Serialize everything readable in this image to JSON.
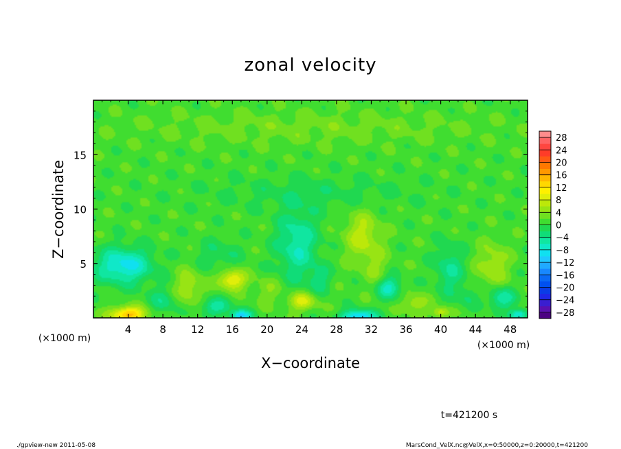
{
  "chart_data": {
    "type": "heatmap",
    "title": "zonal velocity",
    "xlabel": "X−coordinate",
    "ylabel": "Z−coordinate",
    "x_unit_label": "(×1000 m)",
    "y_unit_label": "(×1000 m)",
    "xlim": [
      0,
      50
    ],
    "ylim": [
      0,
      20
    ],
    "x_ticks": [
      4,
      8,
      12,
      16,
      20,
      24,
      28,
      32,
      36,
      40,
      44,
      48
    ],
    "x_tick_labels": [
      "4",
      "8",
      "12",
      "16",
      "20",
      "24",
      "28",
      "32",
      "36",
      "40",
      "44",
      "48"
    ],
    "y_ticks": [
      5,
      10,
      15
    ],
    "y_tick_labels": [
      "5",
      "10",
      "15"
    ],
    "colorbar": {
      "levels": [
        -30,
        -28,
        -26,
        -24,
        -22,
        -20,
        -18,
        -16,
        -14,
        -12,
        -10,
        -8,
        -6,
        -4,
        -2,
        0,
        2,
        4,
        6,
        8,
        10,
        12,
        14,
        16,
        18,
        20,
        22,
        24,
        26,
        28,
        30
      ],
      "colors": [
        "#4b0082",
        "#5a10b0",
        "#3a1ed0",
        "#1e28e6",
        "#0a3ce6",
        "#0050f0",
        "#0a6af5",
        "#1888ff",
        "#20aaff",
        "#20c8ff",
        "#10e0f0",
        "#10e8c8",
        "#10e6a0",
        "#10dc78",
        "#20d850",
        "#40dd30",
        "#70e020",
        "#98e414",
        "#bce80a",
        "#e0ee0a",
        "#fff000",
        "#ffd800",
        "#ffb800",
        "#ff9800",
        "#ff7800",
        "#ff5a14",
        "#ff3c28",
        "#ff4640",
        "#ff6464",
        "#ff8c8c"
      ],
      "tick_values": [
        -28,
        -24,
        -20,
        -16,
        -12,
        -8,
        -4,
        0,
        4,
        8,
        12,
        16,
        20,
        24,
        28
      ],
      "tick_labels": [
        "−28",
        "−24",
        "−20",
        "−16",
        "−12",
        "−8",
        "−4",
        "0",
        "4",
        "8",
        "12",
        "16",
        "20",
        "24",
        "28"
      ]
    },
    "field_background_value": 1,
    "features": [
      {
        "x": 3.5,
        "z": 4.8,
        "sx": 3.2,
        "sz": 1.6,
        "v": -10
      },
      {
        "x": 4.0,
        "z": 0.3,
        "sx": 2.0,
        "sz": 0.7,
        "v": 14
      },
      {
        "x": 8.0,
        "z": 1.5,
        "sx": 1.6,
        "sz": 1.2,
        "v": -4
      },
      {
        "x": 11.0,
        "z": 2.8,
        "sx": 1.6,
        "sz": 1.6,
        "v": 5
      },
      {
        "x": 14.0,
        "z": 1.0,
        "sx": 1.8,
        "sz": 0.8,
        "v": -6
      },
      {
        "x": 16.0,
        "z": 3.5,
        "sx": 1.5,
        "sz": 0.9,
        "v": 10
      },
      {
        "x": 17.0,
        "z": 0.2,
        "sx": 1.2,
        "sz": 0.5,
        "v": -11
      },
      {
        "x": 14.5,
        "z": 5.8,
        "sx": 2.5,
        "sz": 1.4,
        "v": -3
      },
      {
        "x": 23.5,
        "z": 6.8,
        "sx": 2.3,
        "sz": 3.2,
        "v": -7
      },
      {
        "x": 24.0,
        "z": 1.5,
        "sx": 1.6,
        "sz": 0.8,
        "v": 8
      },
      {
        "x": 20.0,
        "z": 2.5,
        "sx": 1.5,
        "sz": 1.2,
        "v": 3
      },
      {
        "x": 26.0,
        "z": 3.5,
        "sx": 1.3,
        "sz": 1.2,
        "v": -4
      },
      {
        "x": 30.5,
        "z": 0.1,
        "sx": 2.0,
        "sz": 0.6,
        "v": -12
      },
      {
        "x": 31.0,
        "z": 7.5,
        "sx": 2.0,
        "sz": 2.2,
        "v": 6
      },
      {
        "x": 32.5,
        "z": 4.5,
        "sx": 1.5,
        "sz": 1.8,
        "v": 3
      },
      {
        "x": 34.0,
        "z": 2.8,
        "sx": 1.4,
        "sz": 1.0,
        "v": -8
      },
      {
        "x": 37.0,
        "z": 1.3,
        "sx": 1.5,
        "sz": 0.9,
        "v": 5
      },
      {
        "x": 41.0,
        "z": 4.5,
        "sx": 1.7,
        "sz": 2.2,
        "v": -5
      },
      {
        "x": 40.0,
        "z": 0.5,
        "sx": 1.0,
        "sz": 0.5,
        "v": 7
      },
      {
        "x": 43.0,
        "z": 2.0,
        "sx": 1.2,
        "sz": 1.0,
        "v": -3
      },
      {
        "x": 46.0,
        "z": 4.8,
        "sx": 1.8,
        "sz": 2.0,
        "v": 5
      },
      {
        "x": 47.0,
        "z": 1.8,
        "sx": 1.5,
        "sz": 1.0,
        "v": -7
      },
      {
        "x": 49.0,
        "z": 0.3,
        "sx": 1.0,
        "sz": 0.5,
        "v": -10
      },
      {
        "x": 25.0,
        "z": 11.5,
        "sx": 12.0,
        "sz": 1.5,
        "v": -2
      },
      {
        "x": 25.0,
        "z": 17.5,
        "sx": 20.0,
        "sz": 1.5,
        "v": 2
      }
    ]
  },
  "footer": {
    "time_label": "t=421200 s",
    "left_note": "./gpview-new   2011-05-08",
    "right_note": "MarsCond_VelX.nc@VelX,x=0:50000,z=0:20000,t=421200"
  }
}
